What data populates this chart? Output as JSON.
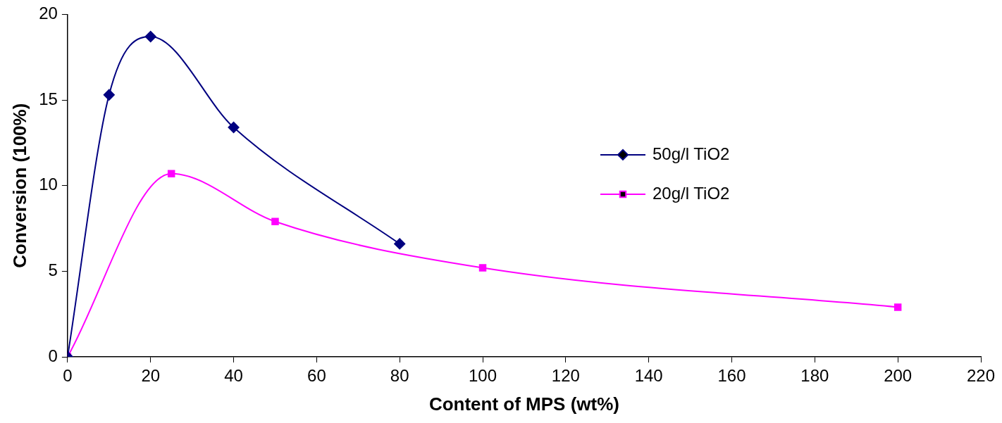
{
  "chart_data": {
    "type": "line",
    "xlabel": "Content of MPS (wt%)",
    "ylabel": "Conversion (100%)",
    "xlim": [
      0,
      220
    ],
    "xticks": [
      0,
      20,
      40,
      60,
      80,
      100,
      120,
      140,
      160,
      180,
      200,
      220
    ],
    "ylim": [
      0,
      20
    ],
    "yticks": [
      0,
      5,
      10,
      15,
      20
    ],
    "grid": false,
    "legend": "right",
    "series": [
      {
        "name": "50g/l TiO2",
        "color": "#000080",
        "marker": "diamond",
        "x": [
          0,
          10,
          20,
          40,
          80
        ],
        "values": [
          0,
          15.3,
          18.7,
          13.4,
          6.6
        ]
      },
      {
        "name": "20g/l TiO2",
        "color": "#ff00ff",
        "marker": "square",
        "x": [
          0,
          25,
          50,
          100,
          200
        ],
        "values": [
          0,
          10.7,
          7.9,
          5.2,
          2.9
        ]
      }
    ]
  }
}
